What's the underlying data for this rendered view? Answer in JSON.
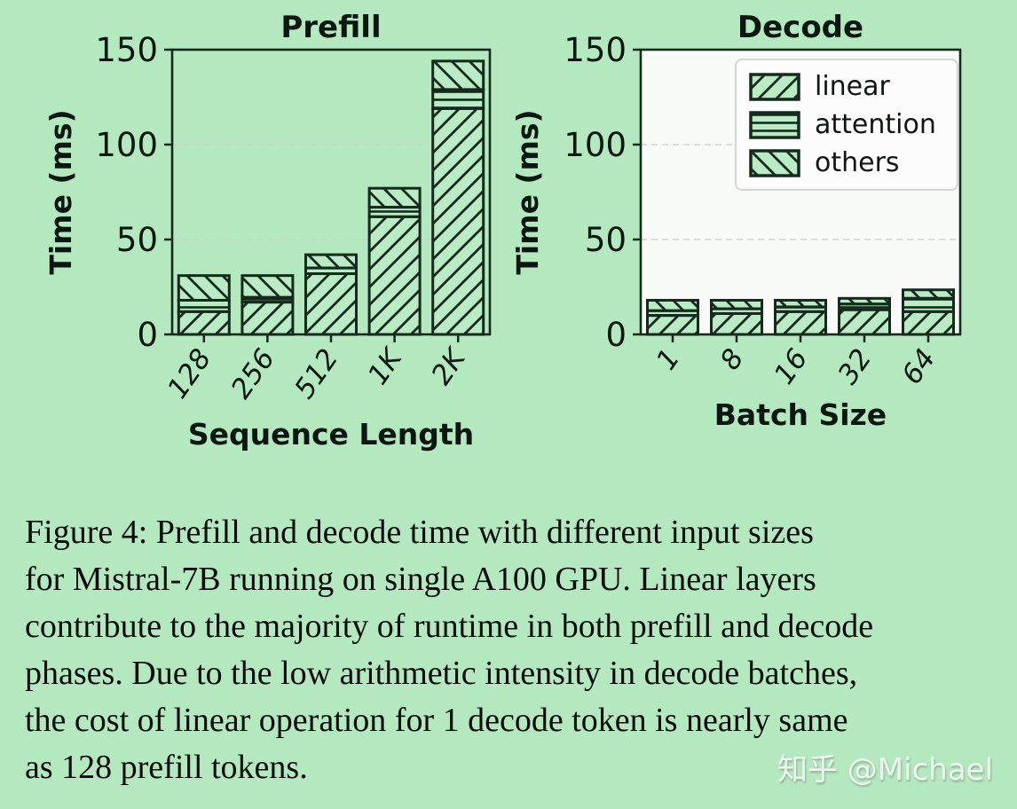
{
  "page": {
    "background": "#b4e8bf",
    "ink": "#152a1c",
    "bar_fill": "#b9ebc4",
    "grid_color": "#ccd3cc",
    "decode_plot_bg": "#f8faf8"
  },
  "chart_data": [
    {
      "type": "bar",
      "stacked": true,
      "title": "Prefill",
      "xlabel": "Sequence Length",
      "ylabel": "Time (ms)",
      "categories": [
        "128",
        "256",
        "512",
        "1K",
        "2K"
      ],
      "series": [
        {
          "name": "linear",
          "hatch": "/",
          "values": [
            12,
            17,
            32,
            62,
            119
          ]
        },
        {
          "name": "attention",
          "hatch": "-",
          "values": [
            6,
            2.5,
            3,
            5,
            10
          ]
        },
        {
          "name": "others",
          "hatch": "\\",
          "values": [
            13,
            11.5,
            7,
            10,
            15
          ]
        }
      ],
      "totals": [
        31,
        31,
        42,
        77,
        144
      ],
      "ylim": [
        0,
        150
      ],
      "yticks": [
        0,
        50,
        100,
        150
      ],
      "grid": "horizontal dashed at 50 and 100",
      "plot_bg": "transparent",
      "legend": false
    },
    {
      "type": "bar",
      "stacked": true,
      "title": "Decode",
      "xlabel": "Batch Size",
      "ylabel": "Time (ms)",
      "categories": [
        "1",
        "8",
        "16",
        "32",
        "64"
      ],
      "series": [
        {
          "name": "linear",
          "hatch": "/",
          "values": [
            10,
            11,
            12,
            13,
            12
          ]
        },
        {
          "name": "attention",
          "hatch": "-",
          "values": [
            2.5,
            2.5,
            2.5,
            3,
            7
          ]
        },
        {
          "name": "others",
          "hatch": "\\",
          "values": [
            5.5,
            4.5,
            3.5,
            3,
            4.5
          ]
        }
      ],
      "totals": [
        18,
        18,
        18,
        19,
        23.5
      ],
      "ylim": [
        0,
        150
      ],
      "yticks": [
        0,
        50,
        100,
        150
      ],
      "grid": "horizontal dashed at 50 and 100",
      "plot_bg": "#f8faf8",
      "legend": true,
      "legend_position": "upper center",
      "legend_items": [
        "linear",
        "attention",
        "others"
      ]
    }
  ],
  "caption": {
    "lines": [
      "Figure 4: Prefill and decode time with different input sizes",
      "for Mistral-7B running on single A100 GPU. Linear layers",
      "contribute to the majority of runtime in both prefill and decode",
      "phases. Due to the low arithmetic intensity in decode batches,",
      "the cost of linear operation for 1 decode token is nearly same",
      "as 128 prefill tokens."
    ]
  },
  "watermark": {
    "text": "知乎 @Michael"
  }
}
